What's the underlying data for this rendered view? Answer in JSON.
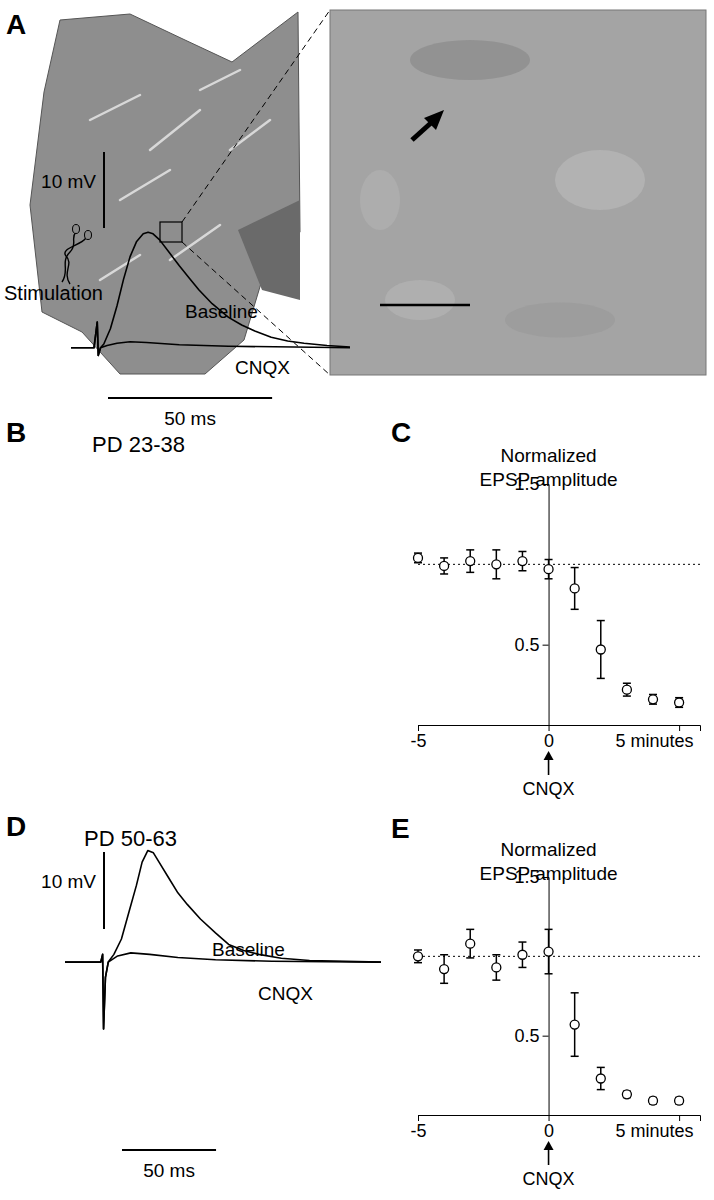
{
  "chart_data": [
    {
      "type": "image",
      "panel": "A",
      "annotations": [
        "Stimulation"
      ]
    },
    {
      "type": "line",
      "panel": "B",
      "title": "PD 23-38",
      "tick_labels": false,
      "xlim": [
        -8,
        77
      ],
      "ylim": [
        -2,
        18
      ],
      "series": [
        {
          "name": "Baseline",
          "color": "#000000",
          "x": [
            -8,
            -1,
            0,
            0.3,
            1,
            2,
            4,
            6,
            8,
            10,
            12,
            14,
            15.5,
            17,
            19,
            22,
            25,
            28,
            31,
            35,
            40,
            44,
            48,
            53,
            58,
            63,
            70,
            77
          ],
          "values": [
            0,
            0,
            3.4,
            -1,
            0,
            0.5,
            2.5,
            5.5,
            9,
            12,
            14,
            15,
            15.2,
            15,
            14.2,
            12.5,
            10.8,
            9.2,
            7.6,
            5.8,
            4,
            3,
            2.2,
            1.4,
            0.9,
            0.6,
            0.3,
            0.1
          ]
        },
        {
          "name": "CNQX",
          "color": "#000000",
          "x": [
            -8,
            -1,
            0,
            0.3,
            1,
            3,
            6,
            10,
            15,
            25,
            40,
            60,
            77
          ],
          "values": [
            0,
            0,
            3.4,
            -1,
            0,
            0.3,
            0.6,
            0.8,
            0.7,
            0.4,
            0.2,
            0.1,
            0
          ]
        }
      ],
      "scale_bars": {
        "y": {
          "value": 10,
          "label": "10 mV"
        },
        "x": {
          "value": 50,
          "label": "50 ms"
        }
      }
    },
    {
      "type": "scatter",
      "panel": "C",
      "title": "Normalized EPSP amplitude",
      "marker": "open-circle",
      "x": [
        -5,
        -4,
        -3,
        -2,
        -1,
        0,
        1,
        2,
        3,
        4,
        5
      ],
      "values": [
        1.04,
        0.99,
        1.02,
        1.0,
        1.02,
        0.97,
        0.85,
        0.47,
        0.22,
        0.16,
        0.14
      ],
      "errors": [
        0.03,
        0.05,
        0.07,
        0.09,
        0.06,
        0.06,
        0.13,
        0.18,
        0.04,
        0.03,
        0.03
      ],
      "xlim": [
        -5,
        5.8
      ],
      "ylim": [
        0,
        1.5
      ],
      "xticks": [
        -5,
        0,
        {
          "value": 5,
          "label": "5 minutes"
        }
      ],
      "yticks": [
        0.5,
        1.5
      ],
      "reference": 1,
      "drug": {
        "label": "CNQX",
        "x": 0
      }
    },
    {
      "type": "line",
      "panel": "D",
      "title": "PD 50-63",
      "tick_labels": false,
      "xlim": [
        -20,
        148
      ],
      "ylim": [
        -10,
        16
      ],
      "series": [
        {
          "name": "Baseline",
          "color": "#000000",
          "x": [
            -20,
            -1,
            0,
            0.5,
            1.5,
            3,
            6,
            10,
            14,
            18,
            21,
            24,
            27,
            30,
            35,
            40,
            45,
            52,
            60,
            67,
            75,
            83,
            95,
            110,
            148
          ],
          "values": [
            0,
            0,
            1,
            -8.7,
            -2,
            0,
            1,
            3,
            6.5,
            10,
            13,
            14.5,
            14.2,
            13,
            11,
            9,
            7.5,
            5.6,
            3.8,
            2.3,
            1.5,
            1,
            0.5,
            0.2,
            0
          ]
        },
        {
          "name": "CNQX",
          "color": "#000000",
          "x": [
            -20,
            -1,
            0,
            0.5,
            1.5,
            3,
            8,
            15,
            25,
            40,
            60,
            90,
            148
          ],
          "values": [
            0,
            0,
            1,
            -8.7,
            -2,
            0,
            0.8,
            1.2,
            1,
            0.6,
            0.3,
            0.1,
            0
          ]
        }
      ],
      "scale_bars": {
        "y": {
          "value": 10,
          "label": "10 mV"
        },
        "x": {
          "value": 50,
          "label": "50 ms"
        }
      }
    },
    {
      "type": "scatter",
      "panel": "E",
      "title": "Normalized EPSP amplitude",
      "marker": "open-circle",
      "x": [
        -5,
        -4,
        -3,
        -2,
        -1,
        0,
        1,
        2,
        3,
        4,
        5
      ],
      "values": [
        1.0,
        0.92,
        1.08,
        0.93,
        1.01,
        1.03,
        0.57,
        0.23,
        0.13,
        0.09,
        0.09
      ],
      "errors": [
        0.04,
        0.09,
        0.09,
        0.08,
        0.08,
        0.14,
        0.2,
        0.07,
        0.02,
        0.02,
        0.02
      ],
      "xlim": [
        -5,
        5.8
      ],
      "ylim": [
        0,
        1.5
      ],
      "xticks": [
        -5,
        0,
        {
          "value": 5,
          "label": "5 minutes"
        }
      ],
      "yticks": [
        0.5,
        1.5
      ],
      "reference": 1,
      "drug": {
        "label": "CNQX",
        "x": 0
      }
    }
  ]
}
